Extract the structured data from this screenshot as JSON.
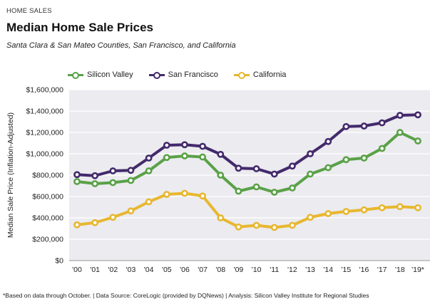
{
  "kicker": "HOME SALES",
  "title": "Median Home Sale Prices",
  "subtitle": "Santa Clara & San Mateo Counties, San Francisco, and California",
  "footnote": "*Based on data through October.  |  Data Source: CoreLogic (provided by DQNews)  |  Analysis: Silicon Valley Institute for Regional Studies",
  "chart_data": {
    "type": "line",
    "ylabel": "Median Sale Price (Inflation-Adjusted)",
    "ylim": [
      0,
      1600000
    ],
    "yticks": [
      0,
      200000,
      400000,
      600000,
      800000,
      1000000,
      1200000,
      1400000,
      1600000
    ],
    "ytick_labels": [
      "$0",
      "$200,000",
      "$400,000",
      "$600,000",
      "$800,000",
      "$1,000,000",
      "$1,200,000",
      "$1,400,000",
      "$1,600,000"
    ],
    "categories": [
      "'00",
      "'01",
      "'02",
      "'03",
      "'04",
      "'05",
      "'06",
      "'07",
      "'08",
      "'09",
      "'10",
      "'11",
      "'12",
      "'13",
      "'14",
      "'15",
      "'16",
      "'17",
      "'18",
      "'19*"
    ],
    "legend_position": "top-left",
    "grid": true,
    "series": [
      {
        "name": "Silicon Valley",
        "color": "#5aa147",
        "values": [
          740000,
          720000,
          730000,
          750000,
          840000,
          965000,
          980000,
          970000,
          800000,
          650000,
          690000,
          640000,
          680000,
          810000,
          870000,
          945000,
          960000,
          1050000,
          1200000,
          1120000
        ]
      },
      {
        "name": "San Francisco",
        "color": "#432a6b",
        "values": [
          805000,
          795000,
          840000,
          845000,
          960000,
          1080000,
          1085000,
          1070000,
          995000,
          865000,
          860000,
          810000,
          885000,
          1000000,
          1115000,
          1255000,
          1260000,
          1290000,
          1360000,
          1365000
        ]
      },
      {
        "name": "California",
        "color": "#e8b730",
        "values": [
          335000,
          355000,
          405000,
          465000,
          550000,
          620000,
          630000,
          605000,
          400000,
          315000,
          330000,
          310000,
          330000,
          405000,
          440000,
          460000,
          475000,
          495000,
          505000,
          495000
        ]
      }
    ]
  }
}
